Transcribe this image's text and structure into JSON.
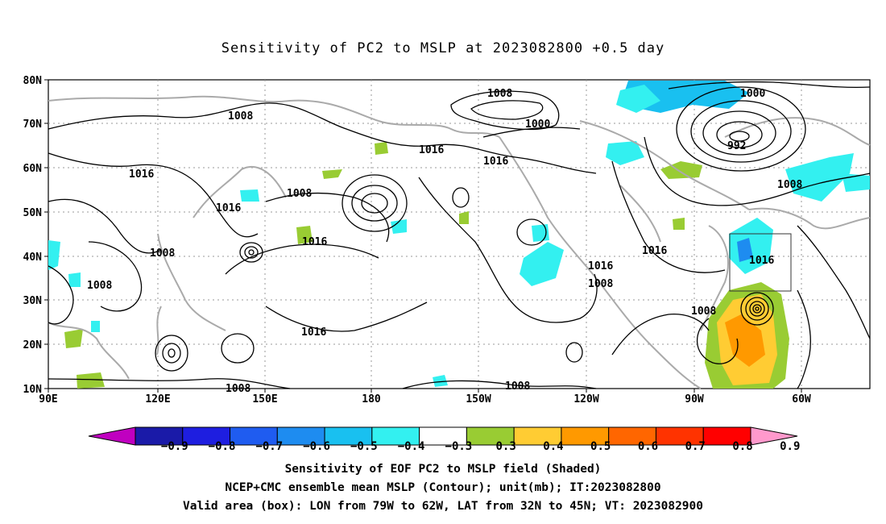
{
  "title": "Sensitivity of PC2 to MSLP at 2023082800 +0.5 day",
  "lat_labels": [
    "80N",
    "70N",
    "60N",
    "50N",
    "40N",
    "30N",
    "20N",
    "10N"
  ],
  "lon_labels": [
    "90E",
    "120E",
    "150E",
    "180",
    "150W",
    "120W",
    "90W",
    "60W"
  ],
  "colorbar": {
    "labels": [
      "-0.9",
      "-0.8",
      "-0.7",
      "-0.6",
      "-0.5",
      "-0.4",
      "-0.3",
      "0.3",
      "0.4",
      "0.5",
      "0.6",
      "0.7",
      "0.8",
      "0.9"
    ],
    "colors": [
      "#c000c0",
      "#1a1aa8",
      "#1e1ee0",
      "#1f5cf0",
      "#1e8cf0",
      "#19c0f0",
      "#33f0f0",
      "#ffffff",
      "#99cc33",
      "#ffcc33",
      "#ff9900",
      "#ff6600",
      "#ff3300",
      "#ff0000",
      "#ff99cc"
    ]
  },
  "contour_labels": [
    "1008",
    "1008",
    "1000",
    "1000",
    "992",
    "1016",
    "1016",
    "1016",
    "1016",
    "1008",
    "1016",
    "1008",
    "1008",
    "1008",
    "1016",
    "1008",
    "1016",
    "1016",
    "1008",
    "1016",
    "1008",
    "1008"
  ],
  "valid_box": {
    "lon_from": "79W",
    "lon_to": "62W",
    "lat_from": "32N",
    "lat_to": "45N"
  },
  "captions": [
    "Sensitivity of EOF PC2 to MSLP field (Shaded)",
    "NCEP+CMC ensemble mean MSLP (Contour); unit(mb); IT:2023082800",
    "Valid area (box): LON from 79W to 62W, LAT from 32N to 45N; VT: 2023082900"
  ]
}
